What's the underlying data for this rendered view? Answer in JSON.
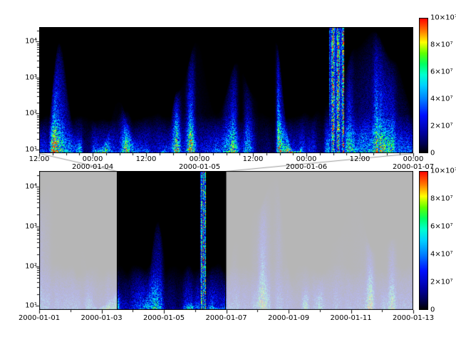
{
  "figure": {
    "background": "#ffffff"
  },
  "colormap": {
    "stops": [
      [
        0.0,
        "#000000"
      ],
      [
        0.06,
        "#00004a"
      ],
      [
        0.15,
        "#0000a0"
      ],
      [
        0.28,
        "#0010ff"
      ],
      [
        0.4,
        "#0080ff"
      ],
      [
        0.5,
        "#00d0ff"
      ],
      [
        0.58,
        "#00ffd0"
      ],
      [
        0.66,
        "#00ff60"
      ],
      [
        0.74,
        "#60ff00"
      ],
      [
        0.82,
        "#ffff00"
      ],
      [
        0.9,
        "#ff8000"
      ],
      [
        1.0,
        "#ff0000"
      ]
    ]
  },
  "chart_data": [
    {
      "type": "heatmap",
      "panel": "detail",
      "x_axis": {
        "start": "2000-01-03 12:00",
        "end": "2000-01-07 00:00",
        "tick_interval_hours": 12,
        "ticks": [
          {
            "time": "12:00",
            "date": ""
          },
          {
            "time": "00:00",
            "date": "2000-01-04"
          },
          {
            "time": "12:00",
            "date": ""
          },
          {
            "time": "00:00",
            "date": "2000-01-05"
          },
          {
            "time": "12:00",
            "date": ""
          },
          {
            "time": "00:00",
            "date": "2000-01-06"
          },
          {
            "time": "12:00",
            "date": ""
          },
          {
            "time": "00:00",
            "date": "2000-01-07"
          }
        ]
      },
      "y_axis": {
        "scale": "log",
        "min": 10,
        "max": 25000,
        "ticks": [
          "10¹",
          "10²",
          "10³",
          "10⁴"
        ]
      },
      "colorbar": {
        "min": 0,
        "max": 100000000,
        "ticks": [
          "0",
          "2×10⁷",
          "4×10⁷",
          "6×10⁷",
          "8×10⁷",
          "10×10⁷"
        ]
      },
      "content": {
        "description": "black near-zero background, persistent blue band below ~100 at ~1-3e7, intermittent blue plumes reaching 1e4, intense multicolor storm event around 2000-01-06 04:00-08:00 reaching ~1e8 across all altitudes",
        "render": {
          "seed": 7,
          "event_x_frac": 0.795,
          "event_width_frac": 0.02,
          "band_height_frac": 0.26
        }
      }
    },
    {
      "type": "heatmap",
      "panel": "overview",
      "x_axis": {
        "start": "2000-01-01",
        "end": "2000-01-13",
        "tick_interval_days": 2,
        "ticks": [
          {
            "date": "2000-01-01"
          },
          {
            "date": "2000-01-03"
          },
          {
            "date": "2000-01-05"
          },
          {
            "date": "2000-01-07"
          },
          {
            "date": "2000-01-09"
          },
          {
            "date": "2000-01-11"
          },
          {
            "date": "2000-01-13"
          }
        ]
      },
      "y_axis": {
        "scale": "log",
        "min": 10,
        "max": 25000,
        "ticks": [
          "10¹",
          "10²",
          "10³",
          "10⁴"
        ]
      },
      "colorbar": {
        "min": 0,
        "max": 100000000,
        "ticks": [
          "0",
          "2×10⁷",
          "4×10⁷",
          "6×10⁷",
          "8×10⁷",
          "10×10⁷"
        ]
      },
      "selection": {
        "from": "2000-01-03 12:00",
        "to": "2000-01-07 00:00",
        "from_frac": 0.2083,
        "to_frac": 0.5,
        "style": "undimmed with black outline, linked by gray lines to detail panel"
      },
      "content": {
        "description": "same spectrogram over full 12 days; area outside selection washed out with light gray overlay; thin bright event streak near 2000-01-06",
        "render": {
          "seed": 13,
          "event_x_frac": 0.437,
          "event_width_frac": 0.007,
          "band_height_frac": 0.26,
          "dim_alpha": 0.8,
          "dim_color": "#e4e4e4"
        }
      }
    }
  ]
}
